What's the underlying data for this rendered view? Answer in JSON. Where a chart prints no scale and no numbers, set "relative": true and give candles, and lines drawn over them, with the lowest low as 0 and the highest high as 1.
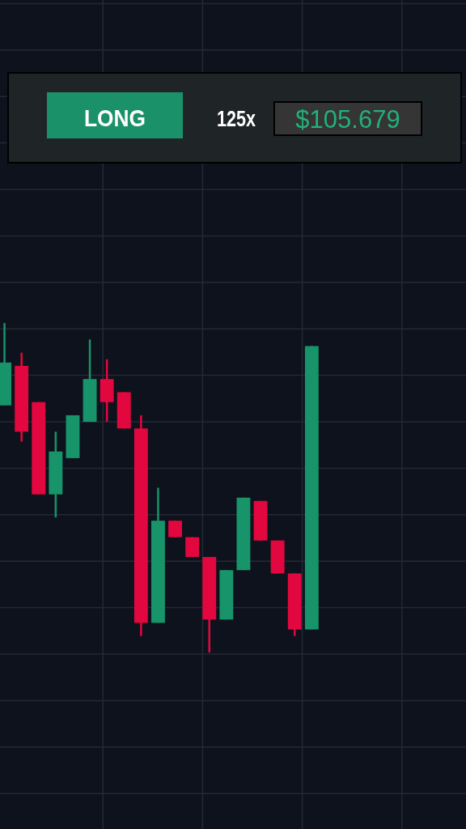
{
  "chart_data": [
    {
      "type": "other",
      "annotations": [
        "LONG",
        "125x",
        "$105.679"
      ]
    },
    {
      "type": "candlestick",
      "relative": true,
      "grid": true,
      "categories": [
        null,
        null,
        null,
        null,
        null,
        null,
        null,
        null,
        null,
        null,
        null,
        null,
        null,
        null,
        null,
        null,
        null,
        null,
        null,
        null,
        null,
        null,
        null,
        null,
        null,
        null,
        null,
        null
      ],
      "ohlc": [
        [
          0.75,
          1.0,
          0.75,
          0.88
        ],
        [
          0.87,
          0.91,
          0.64,
          0.67
        ],
        [
          0.76,
          0.76,
          0.48,
          0.48
        ],
        [
          0.48,
          0.67,
          0.41,
          0.61
        ],
        [
          0.59,
          0.72,
          0.59,
          0.72
        ],
        [
          0.7,
          0.95,
          0.7,
          0.83
        ],
        [
          0.83,
          0.89,
          0.7,
          0.76
        ],
        [
          0.79,
          0.79,
          0.68,
          0.68
        ],
        [
          0.68,
          0.72,
          0.05,
          0.09
        ],
        [
          0.09,
          0.5,
          0.09,
          0.4
        ],
        [
          0.4,
          0.4,
          0.35,
          0.35
        ],
        [
          0.35,
          0.35,
          0.29,
          0.29
        ],
        [
          0.29,
          0.29,
          0.0,
          0.1
        ],
        [
          0.1,
          0.25,
          0.1,
          0.25
        ],
        [
          0.25,
          0.47,
          0.25,
          0.47
        ],
        [
          0.46,
          0.46,
          0.34,
          0.34
        ],
        [
          0.34,
          0.34,
          0.24,
          0.24
        ],
        [
          0.24,
          0.24,
          0.05,
          0.07
        ],
        [
          0.07,
          0.93,
          0.07,
          0.93
        ],
        null,
        null,
        null,
        null,
        null,
        null,
        null,
        null,
        null
      ],
      "colors": [
        "#179469",
        "#e3073f",
        "#e3073f",
        "#179469",
        "#179469",
        "#179469",
        "#e3073f",
        "#e3073f",
        "#e3073f",
        "#179469",
        "#e3073f",
        "#e3073f",
        "#e3073f",
        "#179469",
        "#179469",
        "#e3073f",
        "#e3073f",
        "#e3073f",
        "#179469",
        null,
        null,
        null,
        null,
        null,
        null,
        null,
        null,
        null
      ]
    }
  ]
}
